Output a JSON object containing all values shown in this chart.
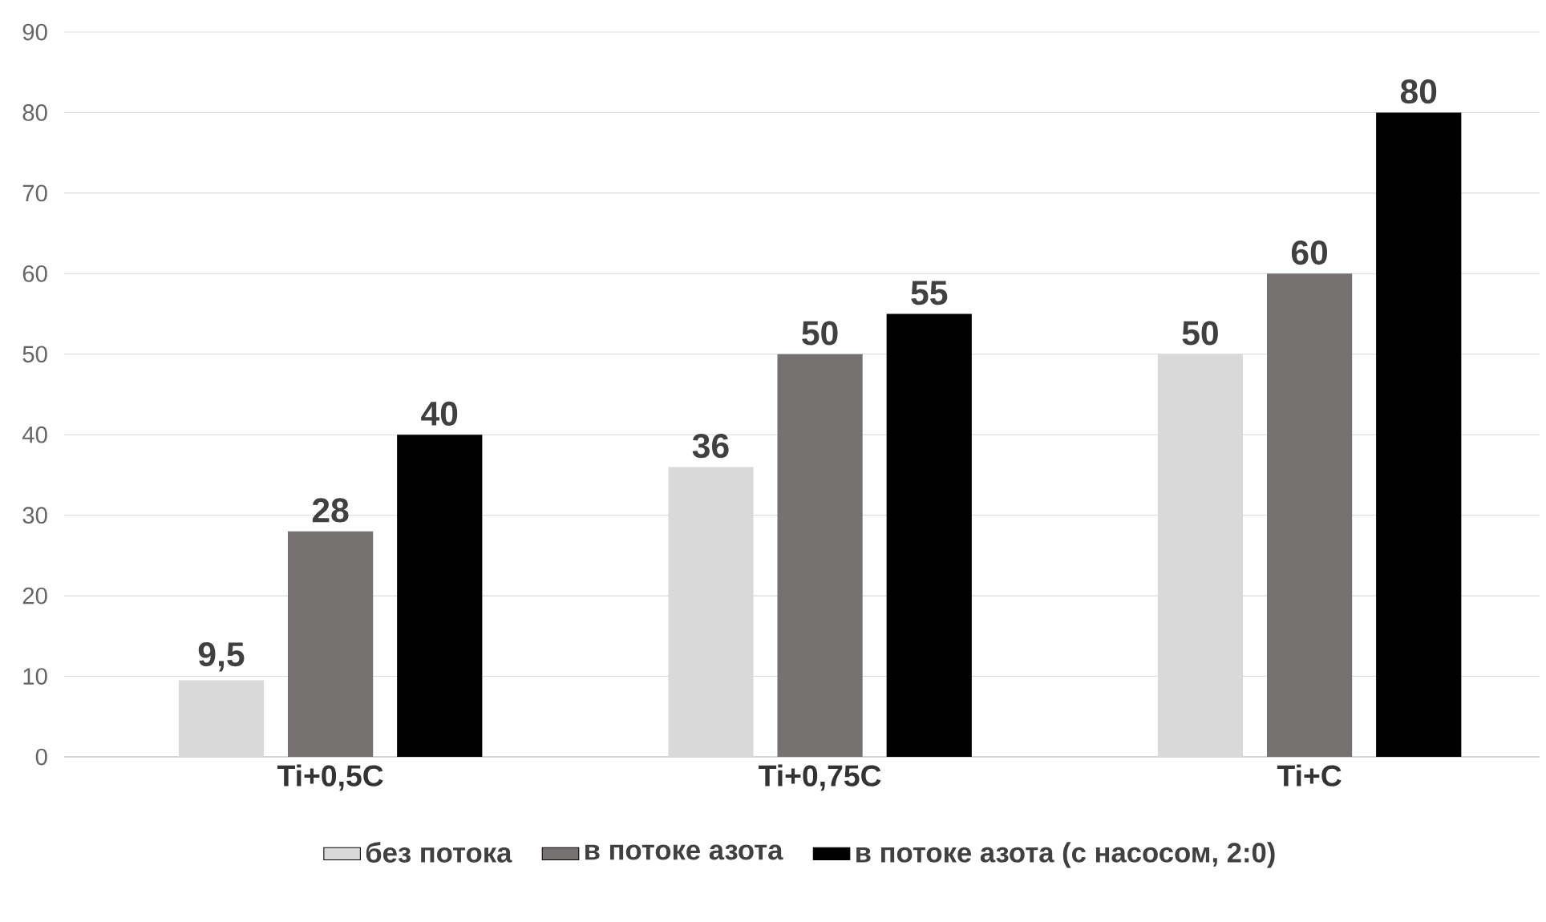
{
  "chart_data": {
    "type": "bar",
    "categories": [
      "Ti+0,5C",
      "Ti+0,75C",
      "Ti+C"
    ],
    "series": [
      {
        "name": "без потока",
        "color": "#d9d9d9",
        "values": [
          9.5,
          36,
          50
        ],
        "value_labels": [
          "9,5",
          "36",
          "50"
        ]
      },
      {
        "name": "в потоке азота",
        "color": "#767171",
        "values": [
          28,
          50,
          60
        ],
        "value_labels": [
          "28",
          "50",
          "60"
        ]
      },
      {
        "name": "в потоке азота (с насосом, 2:0)",
        "color": "#000000",
        "values": [
          40,
          55,
          80
        ],
        "value_labels": [
          "40",
          "55",
          "80"
        ]
      }
    ],
    "ylim": [
      0,
      90
    ],
    "yticks": [
      0,
      10,
      20,
      30,
      40,
      50,
      60,
      70,
      80,
      90
    ],
    "grid": "y",
    "legend": "bottom"
  }
}
